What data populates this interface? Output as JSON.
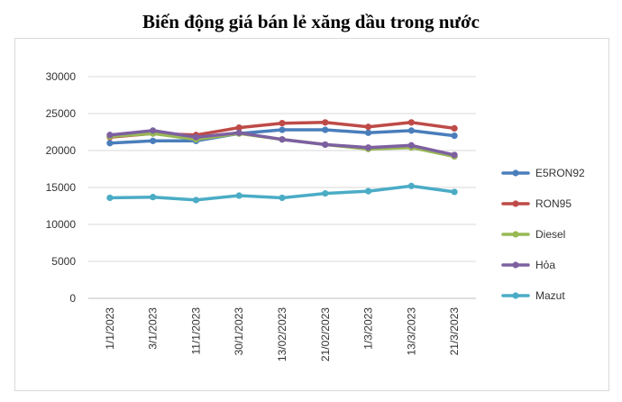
{
  "chart_data": {
    "type": "line",
    "title": "Biến động giá bán lẻ xăng dầu trong nước",
    "xlabel": "",
    "ylabel": "",
    "ylim": [
      0,
      30000
    ],
    "yticks": [
      "0",
      "5000",
      "10000",
      "15000",
      "20000",
      "25000",
      "30000"
    ],
    "categories": [
      "1/1/2023",
      "3/1/2023",
      "11/1/2023",
      "30/1/2023",
      "13/02/2023",
      "21/02/2023",
      "1/3/2023",
      "13/3/2023",
      "21/3/2023"
    ],
    "grid": true,
    "legend_position": "right",
    "series": [
      {
        "name": "E5RON92",
        "color": "#4A7EBB",
        "values": [
          21000,
          21300,
          21300,
          22300,
          22800,
          22800,
          22400,
          22700,
          22000
        ]
      },
      {
        "name": "RON95",
        "color": "#BE4B48",
        "values": [
          21800,
          22300,
          22100,
          23100,
          23700,
          23800,
          23200,
          23800,
          23000
        ]
      },
      {
        "name": "Diesel",
        "color": "#98B954",
        "values": [
          21900,
          22300,
          21500,
          22300,
          21500,
          20800,
          20200,
          20400,
          19200
        ]
      },
      {
        "name": "Hỏa",
        "color": "#7D60A0",
        "values": [
          22100,
          22700,
          21800,
          22400,
          21500,
          20800,
          20400,
          20700,
          19400
        ]
      },
      {
        "name": "Mazut",
        "color": "#4BACC6",
        "values": [
          13600,
          13700,
          13300,
          13900,
          13600,
          14200,
          14500,
          15200,
          14400
        ]
      }
    ]
  }
}
